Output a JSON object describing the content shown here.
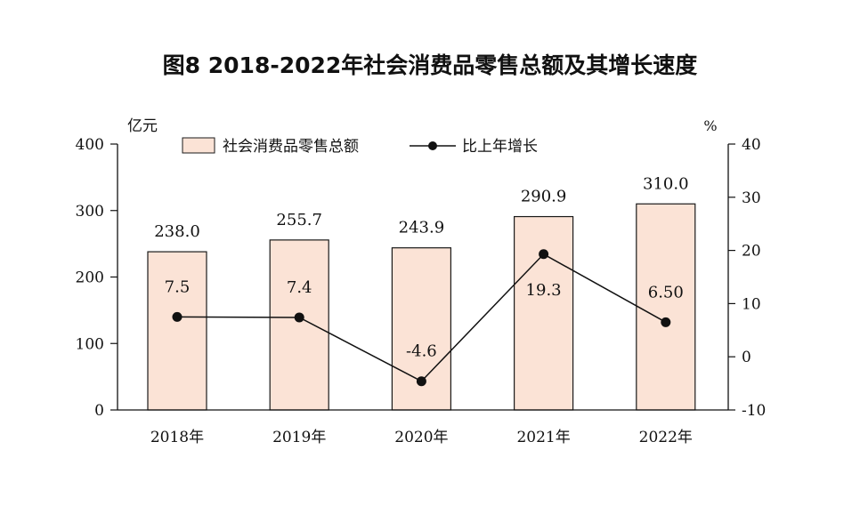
{
  "chart_data": {
    "type": "bar",
    "title": "图8 2018-2022年社会消费品零售总额及其增长速度",
    "categories": [
      "2018年",
      "2019年",
      "2020年",
      "2021年",
      "2022年"
    ],
    "series": [
      {
        "name": "社会消费品零售总额",
        "type": "bar",
        "axis": "left",
        "values": [
          238.0,
          255.7,
          243.9,
          290.9,
          310.0
        ],
        "labels": [
          "238.0",
          "255.7",
          "243.9",
          "290.9",
          "310.0"
        ]
      },
      {
        "name": "比上年增长",
        "type": "line",
        "axis": "right",
        "values": [
          7.5,
          7.4,
          -4.6,
          19.3,
          6.5
        ],
        "labels": [
          "7.5",
          "7.4",
          "-4.6",
          "19.3",
          "6.50"
        ]
      }
    ],
    "ylabel": "亿元",
    "ylim": [
      0,
      400
    ],
    "yticks": [
      0,
      100,
      200,
      300,
      400
    ],
    "y2label": "%",
    "y2lim": [
      -10,
      40
    ],
    "y2ticks": [
      -10,
      0,
      10,
      20,
      30,
      40
    ],
    "legend": "top-center",
    "grid": false,
    "colors": {
      "bar_fill": "#fbe3d6",
      "bar_stroke": "#1a1a1a",
      "line": "#111111",
      "axis": "#111111"
    }
  }
}
